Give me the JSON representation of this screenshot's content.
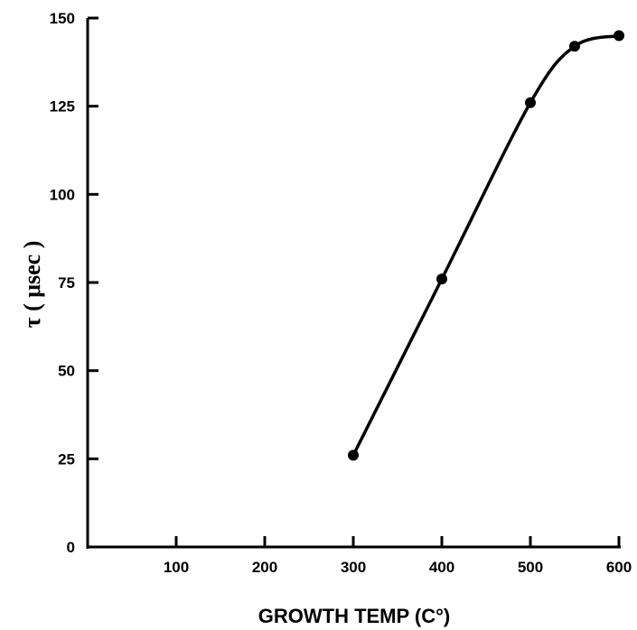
{
  "chart_data": {
    "type": "line",
    "title": "",
    "xlabel": "GROWTH TEMP (C°)",
    "ylabel": "τ ( μsec )",
    "xlim": [
      0,
      600
    ],
    "ylim": [
      0,
      150
    ],
    "x_ticks": [
      100,
      200,
      300,
      400,
      500,
      600
    ],
    "x_tick_labels": [
      "100",
      "200",
      "300",
      "400",
      "500",
      "600"
    ],
    "y_ticks": [
      0,
      25,
      50,
      75,
      100,
      125,
      150
    ],
    "y_tick_labels": [
      "0",
      "25",
      "50",
      "75",
      "100",
      "125",
      "150"
    ],
    "grid": false,
    "legend": "none",
    "series": [
      {
        "x": [
          300,
          400,
          500,
          550,
          600
        ],
        "y": [
          26,
          76,
          126,
          142,
          145
        ]
      }
    ]
  }
}
